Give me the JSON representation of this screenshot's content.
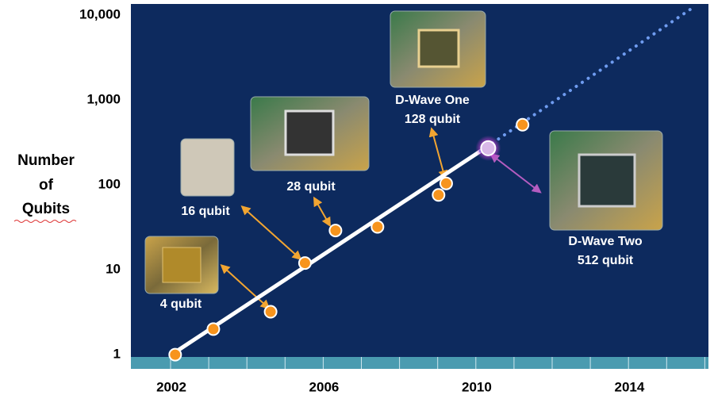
{
  "chart_data": {
    "type": "scatter",
    "ylabel": [
      "Number",
      "of",
      "Qubits"
    ],
    "log_y": true,
    "xlim": [
      2000.94,
      2016.07
    ],
    "ylim": [
      0.94,
      13500
    ],
    "xticks": [
      2002,
      2006,
      2010,
      2014
    ],
    "yticks": [
      1,
      10,
      100,
      {
        "value": 1000,
        "label": "1,000"
      },
      {
        "value": 10000,
        "label": "10,000"
      }
    ],
    "series": [
      {
        "style": "solid-line",
        "color": "#ffffff",
        "x": [
          2002,
          2010.1
        ],
        "values": [
          1,
          250
        ]
      },
      {
        "style": "dotted-line",
        "color": "#6f9cf0",
        "x": [
          2010.1,
          2015.6
        ],
        "values": [
          250,
          11700
        ]
      },
      {
        "style": "markers",
        "color": "#f7941d",
        "x": [
          2002.1,
          2003.1,
          2004.6,
          2005.5,
          2006.3,
          2007.4,
          2009.0,
          2009.2,
          2011.2
        ],
        "values": [
          1,
          2,
          3.2,
          12,
          29,
          32,
          76,
          104,
          510
        ]
      },
      {
        "style": "highlight",
        "color": "#d9b8e8",
        "x": [
          2010.3
        ],
        "values": [
          270
        ]
      }
    ],
    "annotations": [
      {
        "lines": [
          "4 qubit"
        ]
      },
      {
        "lines": [
          "16 qubit"
        ]
      },
      {
        "lines": [
          "28 qubit"
        ]
      },
      {
        "lines": [
          "D-Wave One",
          "128 qubit"
        ]
      },
      {
        "lines": [
          "D-Wave Two",
          "512 qubit"
        ]
      }
    ]
  }
}
